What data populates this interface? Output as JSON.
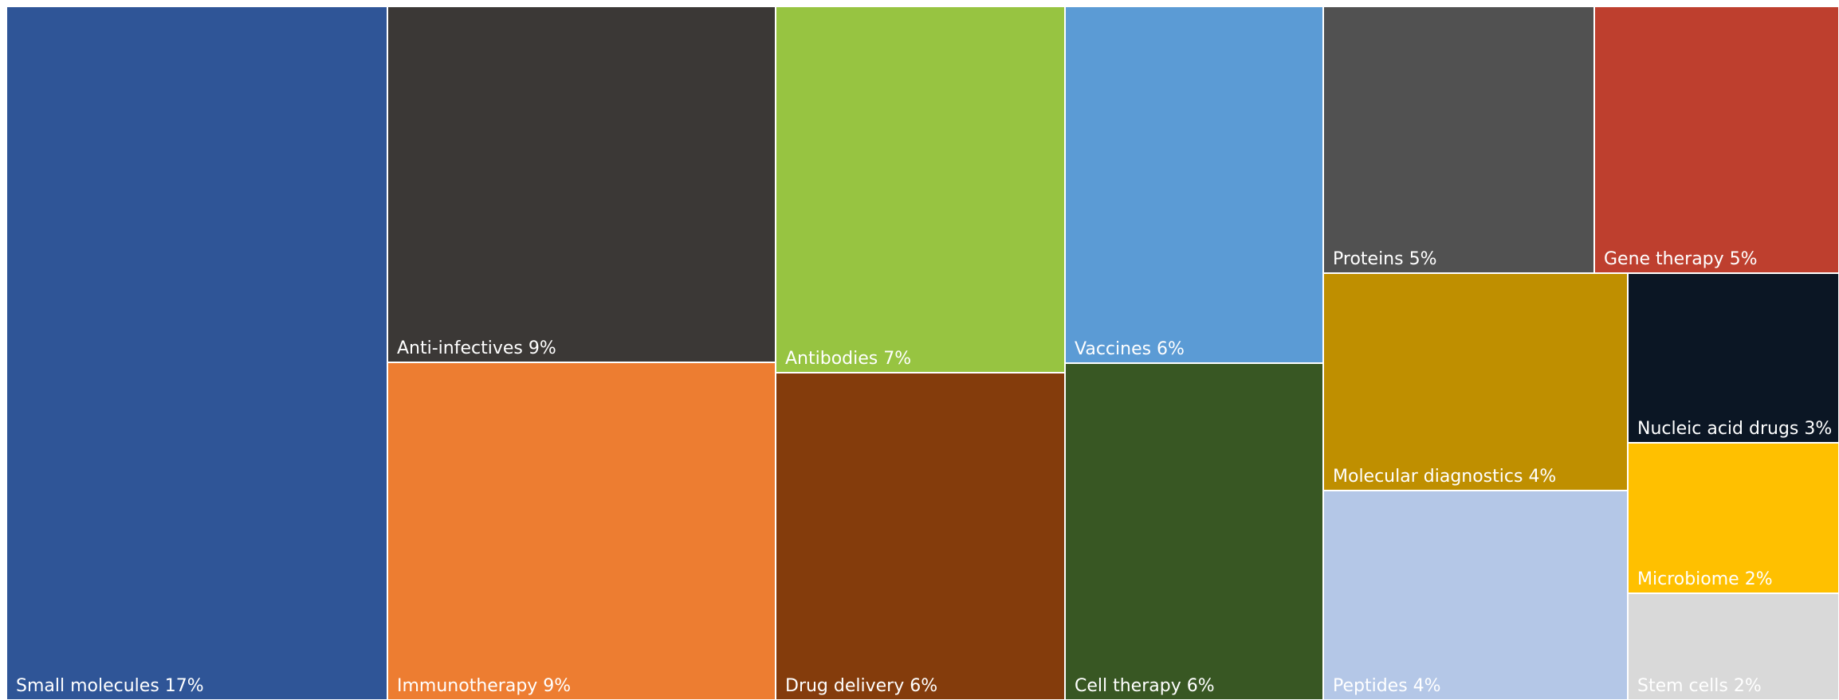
{
  "chart_data": {
    "type": "treemap",
    "title": "",
    "items": [
      {
        "name": "Small molecules",
        "value": 17,
        "label": "Small molecules 17%",
        "color": "#2F5597"
      },
      {
        "name": "Anti-infectives",
        "value": 9,
        "label": "Anti-infectives 9%",
        "color": "#3B3836"
      },
      {
        "name": "Immunotherapy",
        "value": 9,
        "label": "Immunotherapy 9%",
        "color": "#ED7D31"
      },
      {
        "name": "Antibodies",
        "value": 7,
        "label": "Antibodies 7%",
        "color": "#97C441"
      },
      {
        "name": "Drug delivery",
        "value": 6,
        "label": "Drug delivery 6%",
        "color": "#843C0C"
      },
      {
        "name": "Vaccines",
        "value": 6,
        "label": "Vaccines 6%",
        "color": "#5B9BD5"
      },
      {
        "name": "Cell therapy",
        "value": 6,
        "label": "Cell therapy 6%",
        "color": "#385723"
      },
      {
        "name": "Proteins",
        "value": 5,
        "label": "Proteins 5%",
        "color": "#515151"
      },
      {
        "name": "Gene therapy",
        "value": 5,
        "label": "Gene therapy 5%",
        "color": "#BE3F2E"
      },
      {
        "name": "Molecular diagnostics",
        "value": 4,
        "label": "Molecular diagnostics 4%",
        "color": "#BF8F00"
      },
      {
        "name": "Peptides",
        "value": 4,
        "label": "Peptides 4%",
        "color": "#B4C7E7"
      },
      {
        "name": "Nucleic acid drugs",
        "value": 3,
        "label": "Nucleic acid drugs 3%",
        "color": "#0B1624"
      },
      {
        "name": "Microbiome",
        "value": 2,
        "label": "Microbiome 2%",
        "color": "#FFC000"
      },
      {
        "name": "Stem cells",
        "value": 2,
        "label": "Stem cells 2%",
        "color": "#D9D9D9"
      }
    ]
  }
}
